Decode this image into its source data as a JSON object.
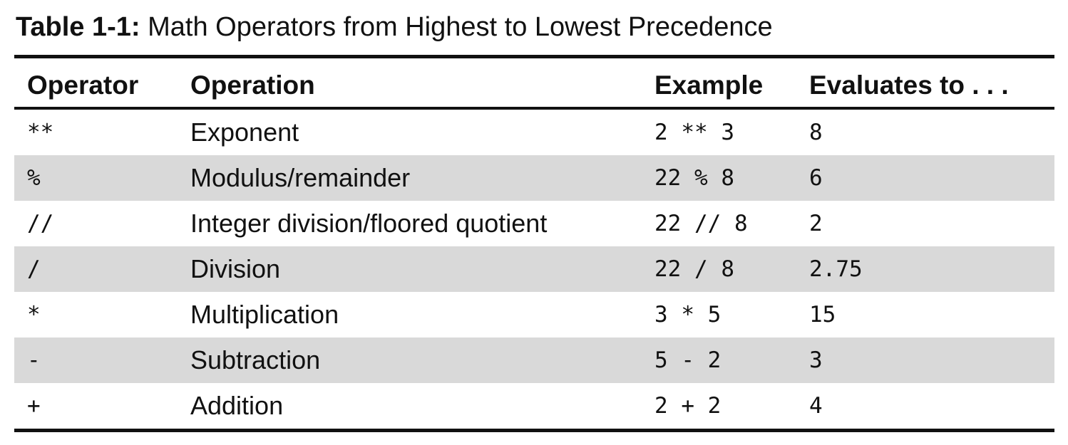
{
  "caption": {
    "label": "Table 1-1:",
    "title": " Math Operators from Highest to Lowest Precedence"
  },
  "table": {
    "headers": [
      "Operator",
      "Operation",
      "Example",
      "Evaluates to . . ."
    ],
    "rows": [
      {
        "operator": "**",
        "operation": "Exponent",
        "example": "2 ** 3",
        "result": "8"
      },
      {
        "operator": "%",
        "operation": "Modulus/remainder",
        "example": "22 % 8",
        "result": "6"
      },
      {
        "operator": "//",
        "operation": "Integer division/floored quotient",
        "example": "22 // 8",
        "result": "2"
      },
      {
        "operator": "/",
        "operation": "Division",
        "example": "22 / 8",
        "result": "2.75"
      },
      {
        "operator": "*",
        "operation": "Multiplication",
        "example": "3 * 5",
        "result": "15"
      },
      {
        "operator": "-",
        "operation": "Subtraction",
        "example": "5 - 2",
        "result": "3"
      },
      {
        "operator": "+",
        "operation": "Addition",
        "example": "2 + 2",
        "result": "4"
      }
    ]
  },
  "colors": {
    "shade": "#d9d9d9",
    "rule": "#111111"
  }
}
